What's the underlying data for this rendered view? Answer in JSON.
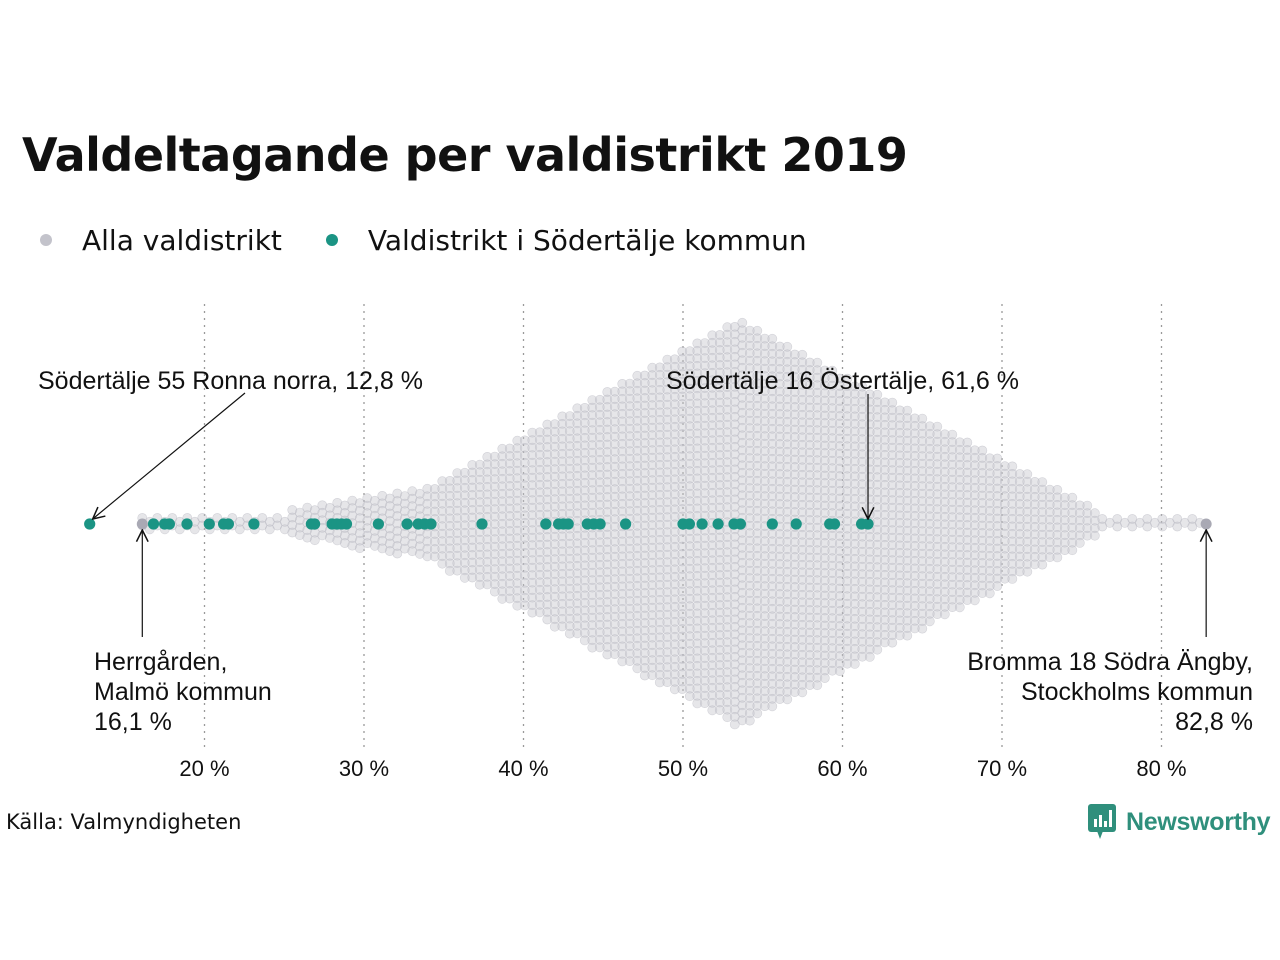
{
  "title": "Valdeltagande per valdistrikt 2019",
  "legend": [
    {
      "label": "Alla valdistrikt",
      "color": "#c3c3cb"
    },
    {
      "label": "Valdistrikt i Södertälje kommun",
      "color": "#1b9484"
    }
  ],
  "source": "Källa: Valmyndigheten",
  "brand": "Newsworthy",
  "chart_data": {
    "type": "scatter",
    "subtype": "beeswarm",
    "xlim": [
      10,
      85
    ],
    "x_ticks": [
      20,
      30,
      40,
      50,
      60,
      70,
      80
    ],
    "x_tick_labels": [
      "20 %",
      "30 %",
      "40 %",
      "50 %",
      "60 %",
      "70 %",
      "80 %"
    ],
    "grid": "vertical dotted",
    "legend_position": "top-left",
    "series": [
      {
        "name": "Alla valdistrikt",
        "color": "#c3c3cb",
        "range": [
          16.1,
          82.8
        ],
        "mode_x": 53.5
      },
      {
        "name": "Valdistrikt i Södertälje kommun",
        "color": "#1b9484",
        "values": [
          12.8,
          16.8,
          17.5,
          17.8,
          18.9,
          20.3,
          21.2,
          21.5,
          23.1,
          26.7,
          26.9,
          28.0,
          28.3,
          28.6,
          28.9,
          30.9,
          32.7,
          33.4,
          33.8,
          34.2,
          37.4,
          41.4,
          42.2,
          42.5,
          42.8,
          44.0,
          44.4,
          44.8,
          46.4,
          50.0,
          50.4,
          51.2,
          52.2,
          53.2,
          53.6,
          55.6,
          57.1,
          59.2,
          59.5,
          61.2,
          61.6
        ]
      }
    ],
    "annotations": [
      {
        "lines": [
          "Södertälje 55 Ronna norra, 12,8 %"
        ],
        "x": 12.8,
        "anchor": "start"
      },
      {
        "lines": [
          "Södertälje 16 Östertälje, 61,6 %"
        ],
        "x": 61.6,
        "anchor": "start"
      },
      {
        "lines": [
          "Herrgården,",
          "Malmö kommun",
          "16,1 %"
        ],
        "x": 16.1,
        "anchor": "start"
      },
      {
        "lines": [
          "Bromma 18 Södra Ängby,",
          "Stockholms kommun",
          "82,8 %"
        ],
        "x": 82.8,
        "anchor": "end"
      }
    ]
  }
}
